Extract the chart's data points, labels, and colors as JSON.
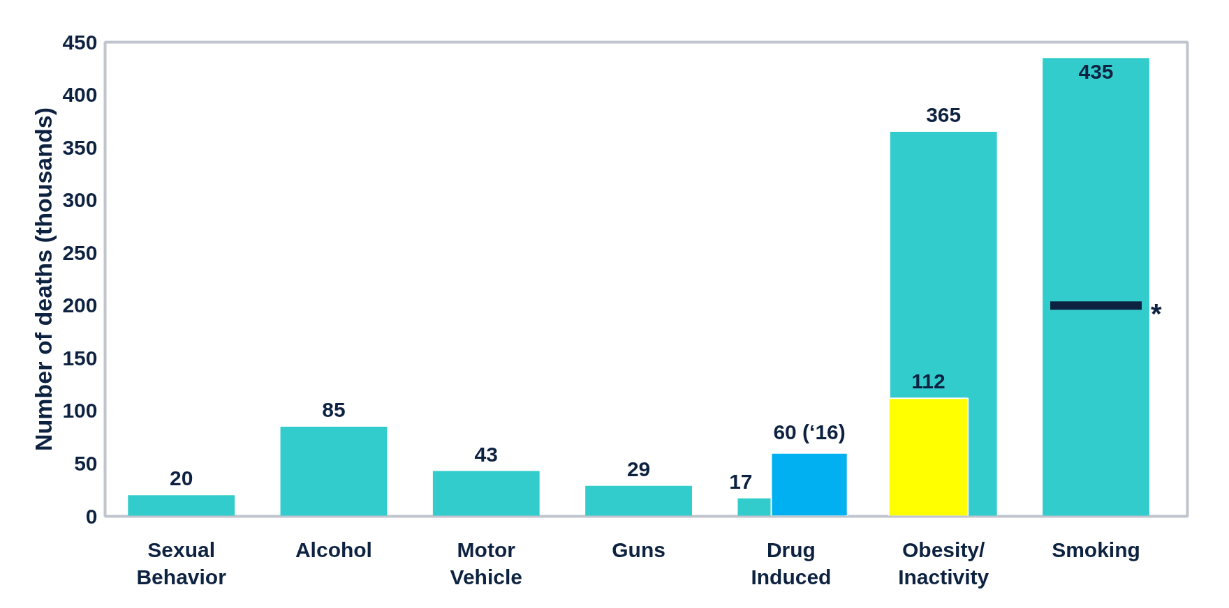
{
  "chart_data": {
    "type": "bar",
    "ylabel": "Number of deaths (thousands)",
    "categories": [
      "Sexual Behavior",
      "Alcohol",
      "Motor Vehicle",
      "Guns",
      "Drug Induced",
      "Obesity/Inactivity",
      "Smoking"
    ],
    "series": [
      {
        "color": "#33cccc",
        "values": [
          20,
          85,
          43,
          29,
          17,
          365,
          435
        ],
        "value_labels": [
          "20",
          "85",
          "43",
          "29",
          "17",
          "365",
          "435"
        ]
      },
      {
        "color": "#00b0f0",
        "values": [
          null,
          null,
          null,
          null,
          60,
          null,
          null
        ],
        "value_labels": [
          null,
          null,
          null,
          null,
          "60 (‘16)",
          null,
          null
        ]
      },
      {
        "color": "#ffff00",
        "values": [
          null,
          null,
          null,
          null,
          null,
          112,
          null
        ],
        "value_labels": [
          null,
          null,
          null,
          null,
          null,
          "112",
          null
        ]
      },
      {
        "color": "#0d2240",
        "values": [
          null,
          null,
          null,
          null,
          null,
          null,
          8
        ],
        "base": [
          null,
          null,
          null,
          null,
          null,
          null,
          196
        ]
      }
    ],
    "annotations": [
      "*"
    ],
    "ylim": [
      0,
      450
    ],
    "yticks": [
      0,
      50,
      100,
      150,
      200,
      250,
      300,
      350,
      400,
      450
    ],
    "grid": false
  }
}
